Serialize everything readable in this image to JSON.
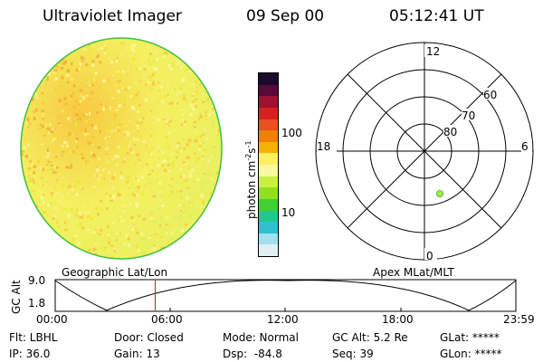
{
  "header": {
    "instrument": "Ultraviolet Imager",
    "date": "09 Sep 00",
    "time": "05:12:41 UT"
  },
  "colorbar": {
    "unit_label": "photon cm",
    "unit_sup1": "-2",
    "unit_s": "s",
    "unit_sup2": "-1",
    "tick_top": "100",
    "tick_bottom": "10",
    "colors": [
      "#1a0a2e",
      "#5a0a3a",
      "#a01030",
      "#d82020",
      "#e85020",
      "#f08000",
      "#f8b000",
      "#fff060",
      "#f8f8a0",
      "#c8f040",
      "#90e020",
      "#40d030",
      "#20c890",
      "#30c0d0",
      "#a0e0f0",
      "#e0f0f0"
    ]
  },
  "image_disk": {
    "base_color": "#f4f060",
    "edge_color": "#40c040",
    "speckle_colors": [
      "#f8f080",
      "#f0e040",
      "#f8c040",
      "#e8f040",
      "#fff8a0"
    ]
  },
  "polar_plot": {
    "label_top": "12",
    "label_bottom": "0",
    "label_left": "18",
    "label_right": "6",
    "ring_labels": [
      "80",
      "70",
      "60"
    ],
    "marker_color": "#a0f040"
  },
  "timeline": {
    "left_label": "Geographic Lat/Lon",
    "right_label": "Apex MLat/MLT",
    "axis_label": "GC Alt",
    "y_max": "9.0",
    "y_min": "1.8",
    "ticks": [
      "00:00",
      "06:00",
      "12:00",
      "18:00",
      "23:59"
    ],
    "current_time_hours": 5.21
  },
  "info": {
    "row1": [
      "Flt: LBHL",
      "Door: Closed",
      "Mode: Normal",
      "GC Alt: 5.2 Re",
      "GLat: *****"
    ],
    "row2": [
      "IP: 36.0",
      "Gain: 13",
      "Dsp:  -84.8",
      "Seq: 39",
      "GLon: *****"
    ]
  }
}
